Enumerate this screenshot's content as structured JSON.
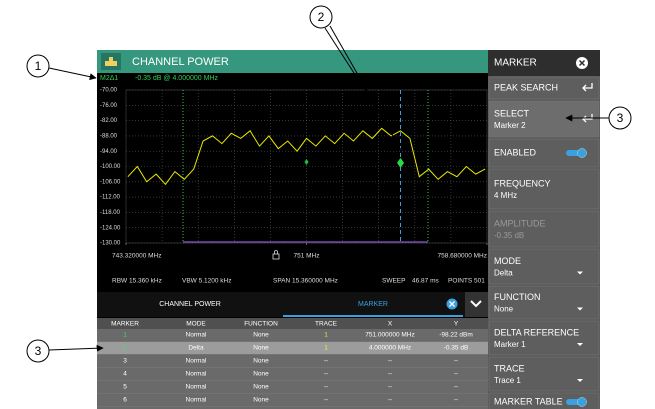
{
  "callouts": [
    "1",
    "2",
    "3",
    "3"
  ],
  "header": {
    "title": "CHANNEL POWER"
  },
  "readout": {
    "label": "M2Δ1",
    "text": "-0.35 dB @ 4.000000 MHz"
  },
  "plot": {
    "ylim": [
      -130,
      -70
    ],
    "yticks": [
      {
        "value": -70,
        "label": "-70.00"
      },
      {
        "value": -76,
        "label": "-76.00"
      },
      {
        "value": -82,
        "label": "-82.00"
      },
      {
        "value": -88,
        "label": "-88.00"
      },
      {
        "value": -94,
        "label": "-94.00"
      },
      {
        "value": -100,
        "label": "-100.00"
      },
      {
        "value": -106,
        "label": "-106.00"
      },
      {
        "value": -112,
        "label": "-112.00"
      },
      {
        "value": -118,
        "label": "-118.00"
      },
      {
        "value": -124,
        "label": "-124.00"
      },
      {
        "value": -130,
        "label": "-130.00"
      }
    ],
    "xlim": [
      743.32,
      758.68
    ],
    "xticks": [
      {
        "value": 743.32,
        "label": "743.320000 MHz"
      },
      {
        "value": 751,
        "label": "751 MHz"
      },
      {
        "value": 758.68,
        "label": "758.680000 MHz"
      }
    ],
    "grid": true,
    "trace": {
      "color": "#e8e800",
      "x": [
        743.4,
        743.8,
        744.2,
        744.6,
        745.0,
        745.4,
        745.8,
        746.2,
        746.6,
        747.0,
        747.4,
        747.8,
        748.2,
        748.6,
        749.0,
        749.4,
        749.8,
        750.2,
        750.6,
        751.0,
        751.4,
        751.8,
        752.2,
        752.6,
        753.0,
        753.4,
        753.8,
        754.2,
        754.6,
        755.0,
        755.4,
        755.8,
        756.2,
        756.6,
        757.0,
        757.4,
        757.8,
        758.2,
        758.6
      ],
      "values": [
        -104,
        -100,
        -106,
        -103,
        -107,
        -102,
        -105,
        -101,
        -90,
        -88,
        -91,
        -87,
        -89,
        -86,
        -92,
        -88,
        -93,
        -90,
        -94,
        -89,
        -92,
        -88,
        -91,
        -87,
        -90,
        -86,
        -89,
        -85,
        -88,
        -86,
        -89,
        -104,
        -101,
        -105,
        -102,
        -104,
        -100,
        -103,
        -101
      ]
    },
    "markers": [
      {
        "x": 751,
        "y": -98.22,
        "color": "#22bb44"
      },
      {
        "x": 755,
        "y": -98.57,
        "color": "#22dd44"
      }
    ],
    "active_marker_color": "#3aa0e0"
  },
  "settings": [
    "RBW 15.360 kHz",
    "VBW 5.1200 kHz",
    "SPAN 15.360000 MHz",
    "SWEEP",
    "46.87 ms",
    "POINTS 501"
  ],
  "tabs": [
    "CHANNEL POWER",
    "MARKER"
  ],
  "table": {
    "columns": [
      "MARKER",
      "MODE",
      "FUNCTION",
      "TRACE",
      "X",
      "Y"
    ],
    "rows": [
      [
        "1",
        "Normal",
        "None",
        "1",
        "751.000000 MHz",
        "-98.22 dBm"
      ],
      [
        "2",
        "Delta",
        "None",
        "1",
        "4.000000 MHz",
        "-0.35 dB"
      ],
      [
        "3",
        "Normal",
        "None",
        "--",
        "--",
        "--"
      ],
      [
        "4",
        "Normal",
        "None",
        "--",
        "--",
        "--"
      ],
      [
        "5",
        "Normal",
        "None",
        "--",
        "--",
        "--"
      ],
      [
        "6",
        "Normal",
        "None",
        "--",
        "--",
        "--"
      ]
    ],
    "selected_row": 1
  },
  "panel": {
    "title": "MARKER",
    "buttons": [
      {
        "label": "PEAK SEARCH",
        "enter": true
      },
      {
        "label": "SELECT",
        "value": "Marker 2",
        "enter": true
      },
      {
        "label": "ENABLED",
        "toggle": true
      },
      {
        "label": "FREQUENCY",
        "value": "4 MHz"
      },
      {
        "label": "AMPLITUDE",
        "value": "-0.35 dB",
        "disabled": true
      },
      {
        "label": "MODE",
        "value": "Delta",
        "dropdown": true
      },
      {
        "label": "FUNCTION",
        "value": "None",
        "dropdown": true
      },
      {
        "label": "DELTA REFERENCE",
        "value": "Marker 1",
        "dropdown": true
      },
      {
        "label": "TRACE",
        "value": "Trace 1",
        "dropdown": true
      },
      {
        "label": "MARKER TABLE",
        "toggle": true
      }
    ]
  }
}
